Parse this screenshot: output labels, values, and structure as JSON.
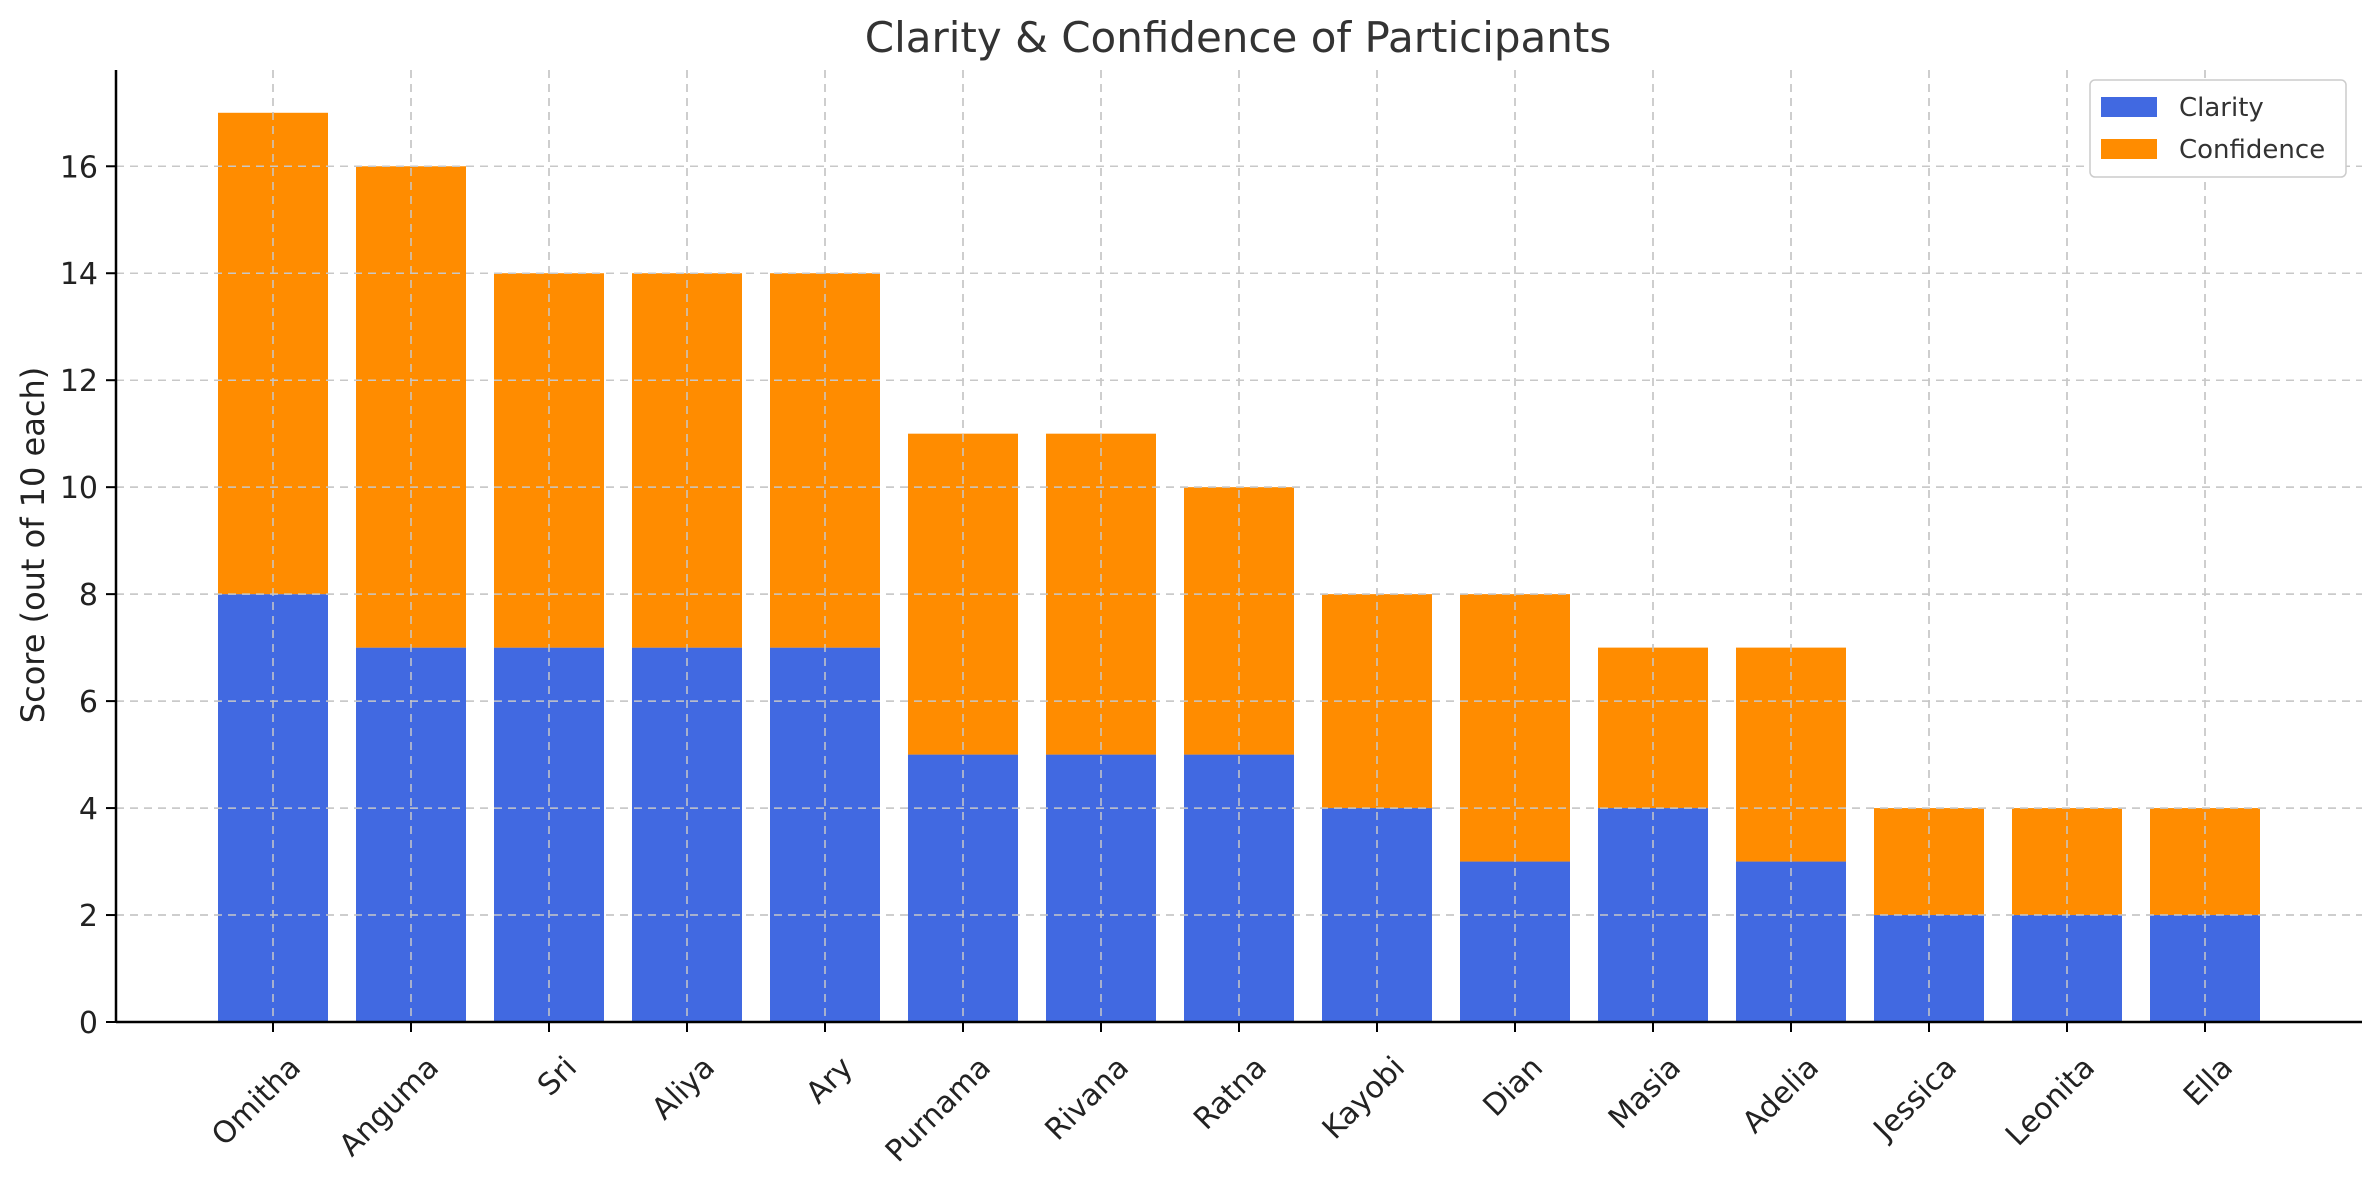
{
  "chart_data": {
    "type": "bar",
    "stacked": true,
    "title": "Clarity & Confidence of Participants",
    "xlabel": "",
    "ylabel": "Score (out of 10 each)",
    "ylim": [
      0,
      17.8
    ],
    "yticks": [
      0,
      2,
      4,
      6,
      8,
      10,
      12,
      14,
      16
    ],
    "grid": true,
    "legend_position": "top-right",
    "categories": [
      "Omitha",
      "Anguma",
      "Sri",
      "Aliya",
      "Ary",
      "Purnama",
      "Rivana",
      "Ratna",
      "Kayobi",
      "Dian",
      "Masia",
      "Adelia",
      "Jessica",
      "Leonita",
      "Ella"
    ],
    "series": [
      {
        "name": "Clarity",
        "color": "#4169E1",
        "values": [
          8,
          7,
          7,
          7,
          7,
          5,
          5,
          5,
          4,
          3,
          4,
          3,
          2,
          2,
          2
        ]
      },
      {
        "name": "Confidence",
        "color": "#FF8C00",
        "values": [
          9,
          9,
          7,
          7,
          7,
          6,
          6,
          5,
          4,
          5,
          3,
          4,
          2,
          2,
          2
        ]
      }
    ]
  }
}
